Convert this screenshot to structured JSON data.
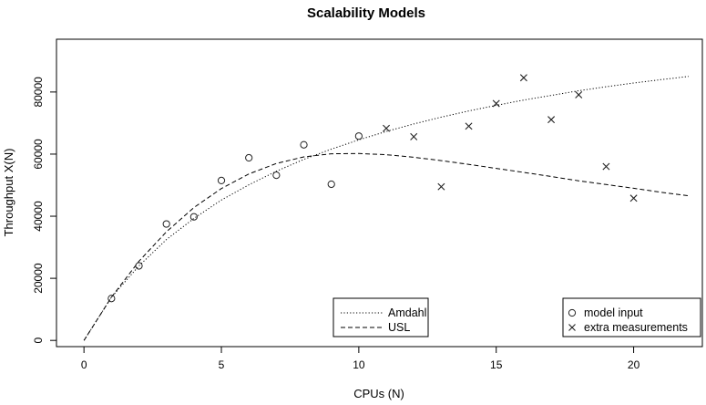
{
  "chart_data": {
    "type": "scatter",
    "title": "Scalability Models",
    "xlabel": "CPUs (N)",
    "ylabel": "Throughput X(N)",
    "xlim": [
      -1,
      22.5
    ],
    "ylim": [
      -2000,
      97000
    ],
    "x_ticks": [
      0,
      5,
      10,
      15,
      20
    ],
    "y_ticks": [
      0,
      20000,
      40000,
      60000,
      80000
    ],
    "grid": false,
    "series": [
      {
        "name": "model input",
        "kind": "points",
        "marker": "circle",
        "points": [
          [
            1,
            13500
          ],
          [
            2,
            24000
          ],
          [
            3,
            37500
          ],
          [
            4,
            39800
          ],
          [
            5,
            51500
          ],
          [
            6,
            58800
          ],
          [
            7,
            53200
          ],
          [
            8,
            63000
          ],
          [
            9,
            50300
          ],
          [
            10,
            65800
          ]
        ]
      },
      {
        "name": "extra measurements",
        "kind": "points",
        "marker": "x",
        "points": [
          [
            11,
            68300
          ],
          [
            12,
            65600
          ],
          [
            13,
            49500
          ],
          [
            14,
            69000
          ],
          [
            15,
            76300
          ],
          [
            16,
            84600
          ],
          [
            17,
            71100
          ],
          [
            18,
            79100
          ],
          [
            19,
            56000
          ],
          [
            20,
            45800
          ]
        ]
      },
      {
        "name": "Amdahl",
        "kind": "curve",
        "style": "dotted",
        "x": [
          0,
          1,
          2,
          3,
          4,
          5,
          6,
          7,
          8,
          9,
          10,
          11,
          12,
          13,
          14,
          15,
          16,
          17,
          18,
          19,
          20,
          21,
          22
        ],
        "y": [
          0,
          13900,
          24000,
          32500,
          39300,
          45200,
          50100,
          54500,
          58300,
          61600,
          64600,
          67300,
          69700,
          71900,
          73900,
          75700,
          77400,
          78900,
          80400,
          81700,
          82900,
          84000,
          85000
        ]
      },
      {
        "name": "USL",
        "kind": "curve",
        "style": "dashed",
        "x": [
          0,
          1,
          2,
          3,
          4,
          5,
          6,
          7,
          8,
          9,
          10,
          11,
          12,
          13,
          14,
          15,
          16,
          17,
          18,
          19,
          20,
          21,
          22
        ],
        "y": [
          0,
          13900,
          25500,
          35000,
          42800,
          48900,
          53600,
          57000,
          59100,
          60100,
          60200,
          59800,
          59000,
          57900,
          56700,
          55400,
          54100,
          52800,
          51400,
          50200,
          49000,
          47700,
          46600
        ]
      }
    ],
    "legends": [
      {
        "placement": "bottom-center",
        "entries": [
          {
            "label": "Amdahl",
            "symbol": "dotted-line"
          },
          {
            "label": "USL",
            "symbol": "dashed-line"
          }
        ]
      },
      {
        "placement": "bottom-right",
        "entries": [
          {
            "label": "model input",
            "symbol": "circle"
          },
          {
            "label": "extra measurements",
            "symbol": "x"
          }
        ]
      }
    ],
    "colors": {
      "foreground": "#000000",
      "marker": "#222222",
      "background": "#ffffff"
    }
  }
}
